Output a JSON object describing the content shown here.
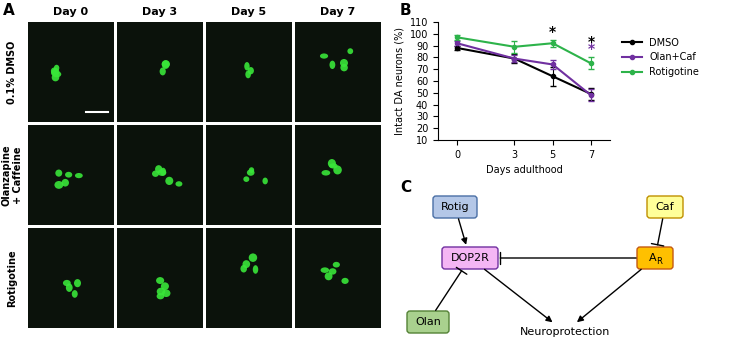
{
  "panel_a": {
    "label": "A",
    "columns": [
      "Day 0",
      "Day 3",
      "Day 5",
      "Day 7"
    ],
    "rows": [
      "0.1% DMSO",
      "Olanzapine\n+ Caffeine",
      "Rotigotine"
    ]
  },
  "chart_data": {
    "label": "B",
    "type": "line",
    "x": [
      0,
      3,
      5,
      7
    ],
    "xlabel": "Days adulthood",
    "ylabel": "Intact DA neurons (%)",
    "xlim": [
      -1,
      8
    ],
    "xticks": [
      0,
      3,
      5,
      7
    ],
    "ylim": [
      10,
      110
    ],
    "yticks": [
      10,
      20,
      30,
      40,
      50,
      60,
      70,
      80,
      90,
      100,
      110
    ],
    "legend": "right",
    "marker": "circle",
    "series": [
      {
        "name": "DMSO",
        "color": "#000000",
        "values": [
          88,
          79,
          64,
          49
        ],
        "errors": [
          2,
          4,
          8,
          5
        ]
      },
      {
        "name": "Olan+Caf",
        "color": "#7030a0",
        "values": [
          92,
          79,
          74,
          48
        ],
        "errors": [
          2,
          3,
          4,
          5
        ]
      },
      {
        "name": "Rotigotine",
        "color": "#2db34a",
        "values": [
          97,
          89,
          92,
          75
        ],
        "errors": [
          2,
          5,
          3,
          5
        ]
      }
    ],
    "annotations": [
      {
        "x": 5,
        "text": "*",
        "color": "#000000"
      },
      {
        "x": 7,
        "text": "*",
        "color": "#7030a0"
      },
      {
        "x": 7,
        "text": "*",
        "color": "#000000"
      }
    ]
  },
  "diagram": {
    "label": "C",
    "nodes": [
      {
        "label": "Rotig",
        "color": "#b4c7e7"
      },
      {
        "label": "Caf",
        "color": "#ffff99"
      },
      {
        "label": "DOP2R",
        "color": "#f4b6f4"
      },
      {
        "label": "A",
        "subscript": "R",
        "color": "#ffc000"
      },
      {
        "label": "Olan",
        "color": "#a9d18e"
      },
      {
        "label": "Neuroprotection"
      }
    ],
    "edges": [
      {
        "from": 0,
        "to": 2,
        "type": "activate"
      },
      {
        "from": 1,
        "to": 3,
        "type": "inhibit"
      },
      {
        "from": 4,
        "to": 2,
        "type": "inhibit"
      },
      {
        "from": 3,
        "to": 2,
        "type": "inhibit"
      },
      {
        "from": 2,
        "to": 5,
        "type": "activate"
      },
      {
        "from": 3,
        "to": 5,
        "type": "activate"
      }
    ]
  }
}
